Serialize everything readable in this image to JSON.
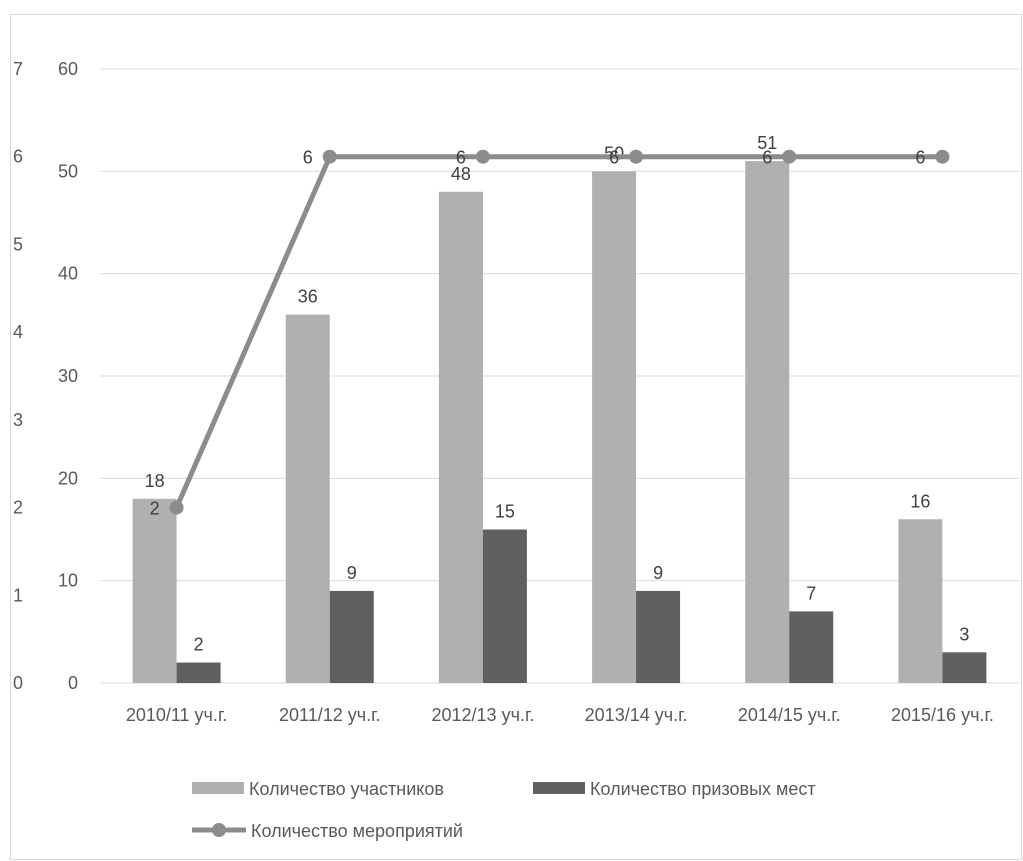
{
  "chart_data": {
    "type": "bar",
    "categories": [
      "2010/11 уч.г.",
      "2011/12 уч.г.",
      "2012/13 уч.г.",
      "2013/14 уч.г.",
      "2014/15 уч.г.",
      "2015/16 уч.г."
    ],
    "series": [
      {
        "name": "Количество участников",
        "type": "bar",
        "axis": "primary",
        "color": "#b0b0b0",
        "values": [
          18,
          36,
          48,
          50,
          51,
          16
        ]
      },
      {
        "name": "Количество призовых мест",
        "type": "bar",
        "axis": "primary",
        "color": "#606060",
        "values": [
          2,
          9,
          15,
          9,
          7,
          3
        ]
      },
      {
        "name": "Количество мероприятий",
        "type": "line",
        "axis": "secondary",
        "color": "#8c8c8c",
        "values": [
          2,
          6,
          6,
          6,
          6,
          6
        ]
      }
    ],
    "primary_axis": {
      "ylim": [
        0,
        60
      ],
      "ticks": [
        "0",
        "10",
        "20",
        "30",
        "40",
        "50",
        "60"
      ]
    },
    "secondary_axis": {
      "ylim": [
        0,
        7
      ],
      "ticks": [
        "0",
        "1",
        "2",
        "3",
        "4",
        "5",
        "6",
        "7"
      ]
    },
    "title": "",
    "xlabel": "",
    "ylabel": "",
    "grid": true,
    "legend": "bottom"
  }
}
